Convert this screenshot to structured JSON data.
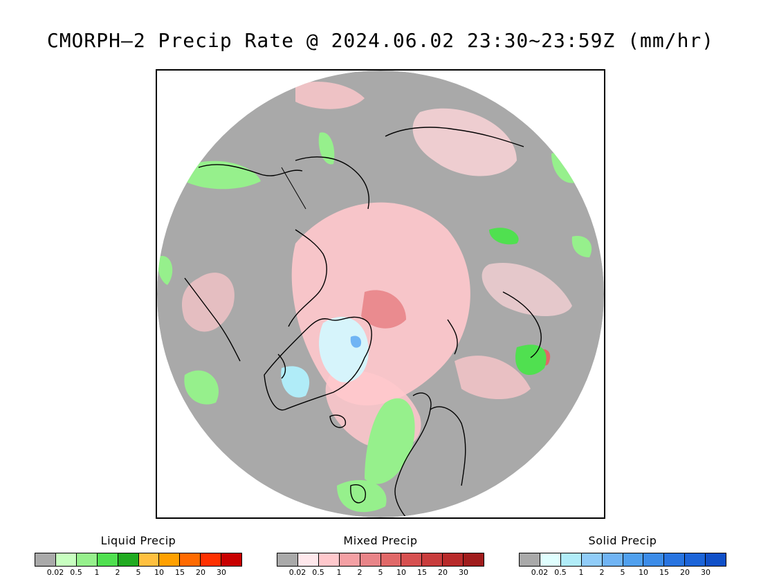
{
  "title": "CMORPH–2 Precip Rate @ 2024.06.02 23:30~23:59Z (mm/hr)",
  "map": {
    "colors": {
      "background_gray": "#a9a9a9",
      "coastline": "#000000",
      "frame": "#000000"
    }
  },
  "legends": [
    {
      "title": "Liquid Precip",
      "ticks": [
        "0.02",
        "0.5",
        "1",
        "2",
        "5",
        "10",
        "15",
        "20",
        "30"
      ],
      "colors": [
        "#a9a9a9",
        "#c8ffc0",
        "#96f08c",
        "#50e050",
        "#20aa20",
        "#ffc040",
        "#ffa000",
        "#ff6a00",
        "#ff3000",
        "#c80000"
      ]
    },
    {
      "title": "Mixed Precip",
      "ticks": [
        "0.02",
        "0.5",
        "1",
        "2",
        "5",
        "10",
        "15",
        "20",
        "30"
      ],
      "colors": [
        "#a9a9a9",
        "#ffe8ec",
        "#ffc8cc",
        "#f4a0a4",
        "#e88488",
        "#e06868",
        "#d65050",
        "#c83c3c",
        "#b82a2a",
        "#a01c1c"
      ]
    },
    {
      "title": "Solid Precip",
      "ticks": [
        "0.02",
        "0.5",
        "1",
        "2",
        "5",
        "10",
        "15",
        "20",
        "30"
      ],
      "colors": [
        "#a9a9a9",
        "#e0ffff",
        "#b0ecf8",
        "#90ccf8",
        "#70b4f4",
        "#50a0ee",
        "#3c8ce8",
        "#2874e0",
        "#1c64d8",
        "#1050c8"
      ]
    }
  ]
}
